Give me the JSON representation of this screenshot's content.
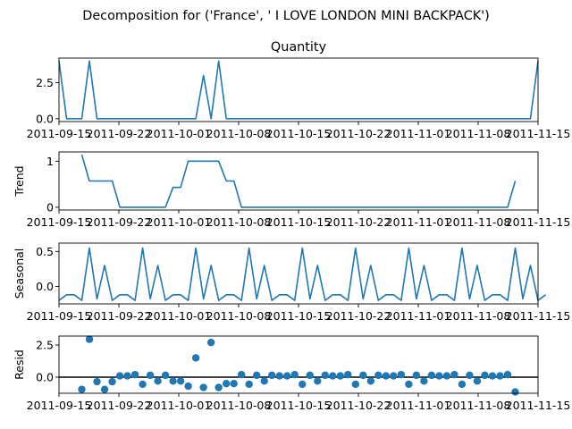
{
  "suptitle": "Decomposition for ('France', ' I LOVE LONDON MINI BACKPACK')",
  "colors": {
    "line": "#1f77b4",
    "axis": "#000000",
    "zero_line": "#000000"
  },
  "x_tick_labels": [
    "2011-09-15",
    "2011-09-22",
    "2011-10-01",
    "2011-10-08",
    "2011-10-15",
    "2011-10-22",
    "2011-11-01",
    "2011-11-08",
    "2011-11-15"
  ],
  "chart_data": [
    {
      "type": "line",
      "title": "Quantity",
      "ylabel": "",
      "xlim": [
        "2011-09-15",
        "2011-11-17"
      ],
      "ylim": [
        -0.2,
        4.2
      ],
      "yticks": [
        0.0,
        2.5
      ],
      "ytick_labels": [
        "0.0",
        "2.5"
      ],
      "points": [
        [
          "2011-09-15",
          4
        ],
        [
          "2011-09-16",
          0
        ],
        [
          "2011-09-18",
          0
        ],
        [
          "2011-09-19",
          4
        ],
        [
          "2011-09-20",
          0
        ],
        [
          "2011-10-03",
          0
        ],
        [
          "2011-10-04",
          3
        ],
        [
          "2011-10-05",
          0
        ],
        [
          "2011-10-06",
          4
        ],
        [
          "2011-10-07",
          0
        ],
        [
          "2011-11-16",
          0
        ],
        [
          "2011-11-17",
          4
        ]
      ]
    },
    {
      "type": "line",
      "title": "",
      "ylabel": "Trend",
      "xlim": [
        "2011-09-15",
        "2011-11-17"
      ],
      "ylim": [
        -0.06,
        1.2
      ],
      "yticks": [
        0,
        1
      ],
      "ytick_labels": [
        "0",
        "1"
      ],
      "points": [
        [
          "2011-09-18",
          1.14
        ],
        [
          "2011-09-19",
          0.57
        ],
        [
          "2011-09-22",
          0.57
        ],
        [
          "2011-09-23",
          0
        ],
        [
          "2011-09-29",
          0
        ],
        [
          "2011-09-30",
          0.43
        ],
        [
          "2011-10-01",
          0.43
        ],
        [
          "2011-10-02",
          1
        ],
        [
          "2011-10-06",
          1
        ],
        [
          "2011-10-07",
          0.57
        ],
        [
          "2011-10-08",
          0.57
        ],
        [
          "2011-10-09",
          0
        ],
        [
          "2011-11-13",
          0
        ],
        [
          "2011-11-14",
          0.57
        ]
      ]
    },
    {
      "type": "line",
      "title": "",
      "ylabel": "Seasonal",
      "xlim": [
        "2011-09-15",
        "2011-11-17"
      ],
      "ylim": [
        -0.25,
        0.62
      ],
      "yticks": [
        0.0,
        0.5
      ],
      "ytick_labels": [
        "0.0",
        "0.5"
      ],
      "pattern_start": "2011-09-15",
      "pattern": [
        -0.2,
        -0.12,
        -0.12,
        -0.2,
        0.55,
        -0.18,
        0.3
      ],
      "pattern_repeat_days": 64
    },
    {
      "type": "scatter",
      "title": "",
      "ylabel": "Resid",
      "xlim": [
        "2011-09-15",
        "2011-11-17"
      ],
      "ylim": [
        -1.25,
        3.2
      ],
      "yticks": [
        0.0,
        2.5
      ],
      "ytick_labels": [
        "0.0",
        "2.5"
      ],
      "zero_line": 0,
      "points": [
        [
          "2011-09-18",
          -0.95
        ],
        [
          "2011-09-19",
          2.95
        ],
        [
          "2011-09-20",
          -0.35
        ],
        [
          "2011-09-21",
          -0.95
        ],
        [
          "2011-09-22",
          -0.35
        ],
        [
          "2011-09-23",
          0.1
        ],
        [
          "2011-09-24",
          0.1
        ],
        [
          "2011-09-25",
          0.2
        ],
        [
          "2011-09-26",
          -0.55
        ],
        [
          "2011-09-27",
          0.15
        ],
        [
          "2011-09-28",
          -0.3
        ],
        [
          "2011-09-29",
          0.15
        ],
        [
          "2011-09-30",
          -0.3
        ],
        [
          "2011-10-01",
          -0.3
        ],
        [
          "2011-10-02",
          -0.7
        ],
        [
          "2011-10-03",
          1.5
        ],
        [
          "2011-10-04",
          -0.8
        ],
        [
          "2011-10-05",
          2.7
        ],
        [
          "2011-10-06",
          -0.8
        ],
        [
          "2011-10-07",
          -0.5
        ],
        [
          "2011-10-08",
          -0.5
        ],
        [
          "2011-10-09",
          0.2
        ],
        [
          "2011-10-10",
          -0.55
        ],
        [
          "2011-10-11",
          0.15
        ],
        [
          "2011-10-12",
          -0.3
        ],
        [
          "2011-10-13",
          0.15
        ],
        [
          "2011-10-14",
          0.1
        ],
        [
          "2011-10-15",
          0.1
        ],
        [
          "2011-10-16",
          0.2
        ],
        [
          "2011-10-17",
          -0.55
        ],
        [
          "2011-10-18",
          0.15
        ],
        [
          "2011-10-19",
          -0.3
        ],
        [
          "2011-10-20",
          0.15
        ],
        [
          "2011-10-21",
          0.1
        ],
        [
          "2011-10-22",
          0.1
        ],
        [
          "2011-10-23",
          0.2
        ],
        [
          "2011-10-24",
          -0.55
        ],
        [
          "2011-10-25",
          0.15
        ],
        [
          "2011-10-26",
          -0.3
        ],
        [
          "2011-10-27",
          0.15
        ],
        [
          "2011-10-28",
          0.1
        ],
        [
          "2011-10-29",
          0.1
        ],
        [
          "2011-10-30",
          0.2
        ],
        [
          "2011-10-31",
          -0.55
        ],
        [
          "2011-11-01",
          0.15
        ],
        [
          "2011-11-02",
          -0.3
        ],
        [
          "2011-11-03",
          0.15
        ],
        [
          "2011-11-04",
          0.1
        ],
        [
          "2011-11-05",
          0.1
        ],
        [
          "2011-11-06",
          0.2
        ],
        [
          "2011-11-07",
          -0.55
        ],
        [
          "2011-11-08",
          0.15
        ],
        [
          "2011-11-09",
          -0.3
        ],
        [
          "2011-11-10",
          0.15
        ],
        [
          "2011-11-11",
          0.1
        ],
        [
          "2011-11-12",
          0.1
        ],
        [
          "2011-11-13",
          0.2
        ],
        [
          "2011-11-14",
          -1.15
        ]
      ]
    }
  ]
}
